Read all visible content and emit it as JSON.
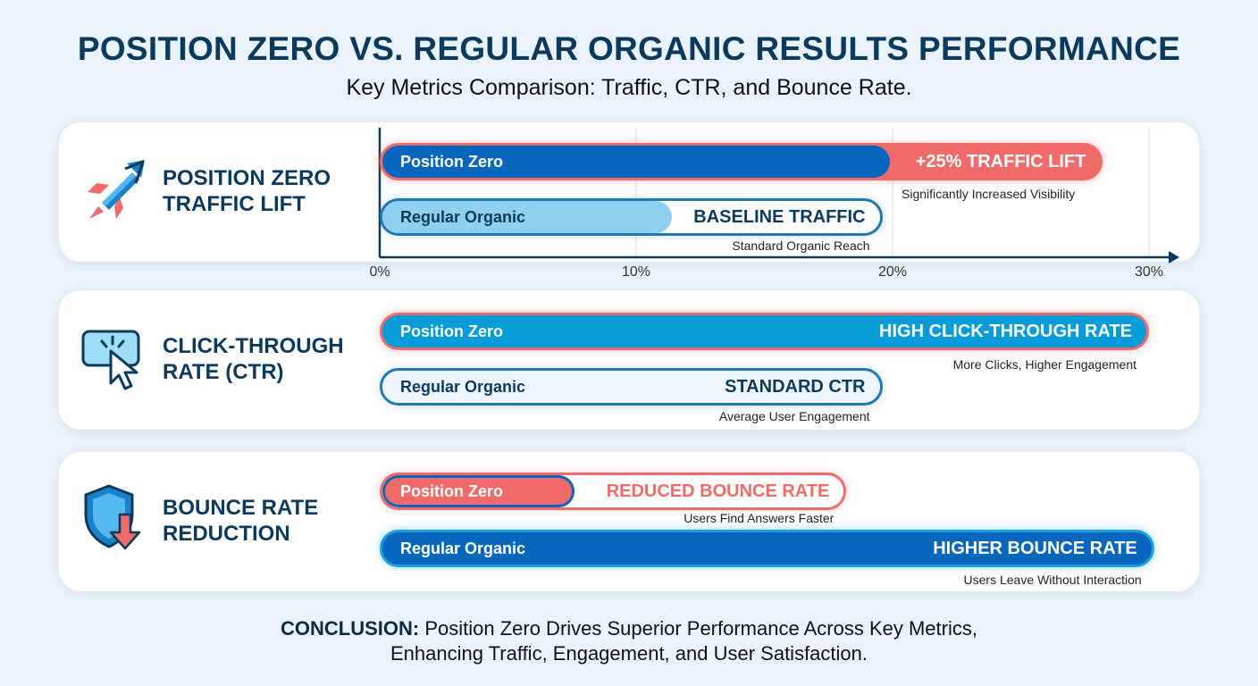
{
  "header": {
    "title": "POSITION ZERO VS. REGULAR ORGANIC RESULTS PERFORMANCE",
    "subtitle": "Key Metrics Comparison: Traffic, CTR, and Bounce Rate."
  },
  "colors": {
    "navy": "#0b3a5e",
    "position_zero_blue": "#0866be",
    "ctr_blue": "#069bd9",
    "light_blue": "#8fd0ee",
    "accent_red": "#f16a6a",
    "outline_blue": "#1f77b4"
  },
  "chart_data": {
    "type": "bar",
    "xaxis": {
      "ticks": [
        "0%",
        "10%",
        "20%",
        "30%"
      ],
      "range": [
        0,
        30
      ],
      "unit": "%"
    },
    "panels": [
      {
        "label_line1": "POSITION ZERO",
        "label_line2": "TRAFFIC LIFT",
        "icon": "rocket-icon",
        "bars": [
          {
            "name": "Position Zero",
            "value": 20,
            "status": "+25% TRAFFIC LIFT",
            "note": "Significantly Increased Visibility"
          },
          {
            "name": "Regular Organic",
            "value": 11.5,
            "status": "BASELINE TRAFFIC",
            "note": "Standard Organic Reach"
          }
        ]
      },
      {
        "label_line1": "CLICK-THROUGH",
        "label_line2": "RATE (CTR)",
        "icon": "cursor-click-icon",
        "bars": [
          {
            "name": "Position Zero",
            "value": 30,
            "status": "HIGH CLICK-THROUGH RATE",
            "note": "More Clicks, Higher Engagement"
          },
          {
            "name": "Regular Organic",
            "value": 19.6,
            "status": "STANDARD CTR",
            "note": "Average User Engagement"
          }
        ]
      },
      {
        "label_line1": "BOUNCE RATE",
        "label_line2": "REDUCTION",
        "icon": "shield-down-arrow-icon",
        "bars": [
          {
            "name": "Position Zero",
            "value": 7.7,
            "status": "REDUCED BOUNCE RATE",
            "note": "Users Find Answers Faster"
          },
          {
            "name": "Regular Organic",
            "value": 30,
            "status": "HIGHER BOUNCE RATE",
            "note": "Users Leave Without Interaction"
          }
        ]
      }
    ]
  },
  "conclusion": {
    "lead": "CONCLUSION:",
    "line1": " Position Zero Drives Superior Performance Across Key Metrics,",
    "line2": "Enhancing Traffic, Engagement, and User Satisfaction."
  }
}
